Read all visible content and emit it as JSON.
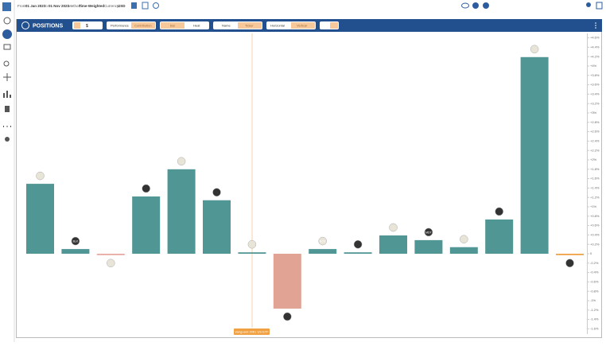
{
  "header": {
    "from_label": "From:",
    "from": "01 Jan 2021",
    "to_label": "To:",
    "to": "01 Nov 2021",
    "method_label": "Method:",
    "method": "Time-Weighted",
    "currency_label": "Currency:",
    "currency": "USD"
  },
  "toolbar": {
    "title": "POSITIONS",
    "currency_symbol": "$",
    "performance": "Performance",
    "contribution": "Contribution",
    "bar": "Bar",
    "heat": "Heat",
    "name": "Name",
    "ticker": "Ticker",
    "horizontal": "Horizontal",
    "vertical": "Vertical"
  },
  "tooltip": "Vanguard 2061 US ETF",
  "chart_data": {
    "type": "bar",
    "categories": [
      null,
      "BLK",
      null,
      null,
      null,
      null,
      null,
      null,
      "BOX",
      null,
      null,
      "MDT",
      null,
      null,
      null,
      null
    ],
    "values": [
      1.49,
      0.1,
      -0.03,
      1.22,
      1.8,
      1.14,
      0.03,
      -1.17,
      0.1,
      0.03,
      0.39,
      0.29,
      0.14,
      0.73,
      4.19,
      -0.03
    ],
    "colors": [
      "#4f9694",
      "#4f9694",
      "#e8a8a0",
      "#4f9694",
      "#4f9694",
      "#4f9694",
      "#4f9694",
      "#e0a394",
      "#4f9694",
      "#4f9694",
      "#4f9694",
      "#4f9694",
      "#4f9694",
      "#4f9694",
      "#4f9694",
      "#f0a040"
    ],
    "ylim": [
      -1.7,
      4.7
    ],
    "yticks": [
      {
        "value": -1.6,
        "label": "-1.6%"
      },
      {
        "value": -1.4,
        "label": "-1.4%"
      },
      {
        "value": -1.2,
        "label": "-1.2%"
      },
      {
        "value": -1,
        "label": "-1%"
      },
      {
        "value": -0.8,
        "label": "-0.8%"
      },
      {
        "value": -0.6,
        "label": "-0.6%"
      },
      {
        "value": -0.4,
        "label": "-0.4%"
      },
      {
        "value": -0.2,
        "label": "-0.2%"
      },
      {
        "value": 0,
        "label": "0"
      },
      {
        "value": 0.2,
        "label": "+0.2%"
      },
      {
        "value": 0.4,
        "label": "+0.4%"
      },
      {
        "value": 0.6,
        "label": "+0.6%"
      },
      {
        "value": 0.8,
        "label": "+0.8%"
      },
      {
        "value": 1,
        "label": "+1%"
      },
      {
        "value": 1.2,
        "label": "+1.2%"
      },
      {
        "value": 1.4,
        "label": "+1.4%"
      },
      {
        "value": 1.6,
        "label": "+1.6%"
      },
      {
        "value": 1.8,
        "label": "+1.8%"
      },
      {
        "value": 2,
        "label": "+2%"
      },
      {
        "value": 2.2,
        "label": "+2.2%"
      },
      {
        "value": 2.4,
        "label": "+2.4%"
      },
      {
        "value": 2.6,
        "label": "+2.6%"
      },
      {
        "value": 2.8,
        "label": "+2.8%"
      },
      {
        "value": 3,
        "label": "+3%"
      },
      {
        "value": 3.2,
        "label": "+3.2%"
      },
      {
        "value": 3.4,
        "label": "+3.4%"
      },
      {
        "value": 3.6,
        "label": "+3.6%"
      },
      {
        "value": 3.8,
        "label": "+3.8%"
      },
      {
        "value": 4,
        "label": "+4%"
      },
      {
        "value": 4.2,
        "label": "+4.2%"
      },
      {
        "value": 4.4,
        "label": "+4.4%"
      },
      {
        "value": 4.6,
        "label": "+4.6%"
      }
    ],
    "grid": false
  }
}
